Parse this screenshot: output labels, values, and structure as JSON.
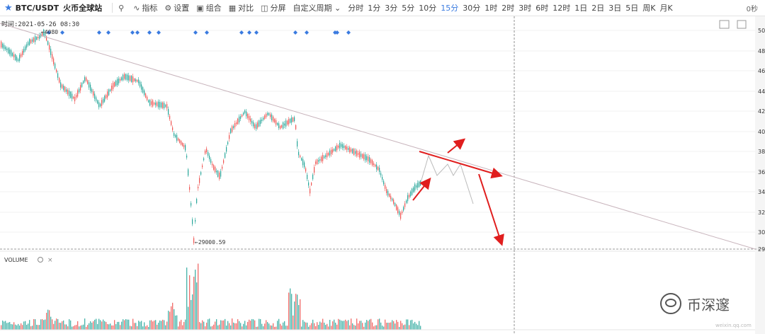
{
  "toolbar": {
    "symbol": "BTC/USDT",
    "exchange": "火币全球站",
    "buttons": [
      {
        "label": "",
        "icon": "search-icon"
      },
      {
        "label": "指标",
        "icon": "indicator-icon"
      },
      {
        "label": "设置",
        "icon": "gear-icon"
      },
      {
        "label": "组合",
        "icon": "combo-icon"
      },
      {
        "label": "对比",
        "icon": "compare-icon"
      },
      {
        "label": "分屏",
        "icon": "split-screen-icon"
      }
    ],
    "custom_period": "自定义周期",
    "intervals": [
      "分时",
      "1分",
      "3分",
      "5分",
      "10分",
      "15分",
      "30分",
      "1时",
      "2时",
      "3时",
      "6时",
      "12时",
      "1日",
      "2日",
      "3日",
      "5日",
      "周K",
      "月K"
    ],
    "active_interval": "15分",
    "seconds_label": "0秒"
  },
  "chart": {
    "crosshair_time_label": "时间:2021-05-26 08:30",
    "high_marker": "←4080",
    "low_marker": "←29000.59",
    "price_axis_labels": [
      "50",
      "48",
      "46",
      "44",
      "42",
      "40",
      "38",
      "36",
      "34",
      "32",
      "30",
      "29"
    ],
    "volume_label": "VOLUME",
    "colors": {
      "up": "#26a69a",
      "down": "#ef5350",
      "arrow": "#e01e1e",
      "diamond": "#3a7be0",
      "trendline": "#c8b4bc"
    }
  },
  "watermark": {
    "brand": "币深邃",
    "url": "weixin.qq.com"
  }
}
